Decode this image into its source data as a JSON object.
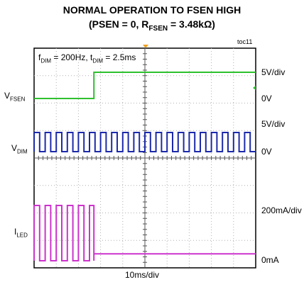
{
  "title_line1": "NORMAL OPERATION TO FSEN HIGH",
  "title_line2_pre": "(PSEN = 0, R",
  "title_line2_sub": "FSEN",
  "title_line2_post": " = 3.48kΩ)",
  "figure_id": "toc11",
  "annotation": {
    "f_pre": "f",
    "f_sub": "DIM",
    "f_post": " = 200Hz, t",
    "t_sub": "DIM",
    "t_post": " = 2.5ms"
  },
  "left_labels": {
    "vfsen_main": "V",
    "vfsen_sub": "FSEN",
    "vdim_main": "V",
    "vdim_sub": "DIM",
    "iled_main": "I",
    "iled_sub": "LED"
  },
  "right_labels": {
    "vfsen_scale": "5V/div",
    "vfsen_zero": "0V",
    "vdim_scale": "5V/div",
    "vdim_zero": "0V",
    "iled_scale": "200mA/div",
    "iled_zero": "0mA"
  },
  "xlabel": "10ms/div",
  "chart_data": {
    "type": "line",
    "x_unit": "ms",
    "x_range": [
      0,
      100
    ],
    "x_divisions": 10,
    "y_divisions": 8,
    "x_per_div": "10ms",
    "grid": true,
    "series": [
      {
        "name": "V_FSEN",
        "color": "#2ec02e",
        "scale": "5V/div",
        "x": [
          0,
          27,
          27,
          100
        ],
        "y": [
          0,
          0,
          5,
          5
        ],
        "y_unit": "V"
      },
      {
        "name": "V_DIM",
        "color": "#1c2aa8",
        "scale": "5V/div",
        "waveform": "square",
        "frequency_hz": 200,
        "high_v": 5,
        "low_v": 0,
        "high_ms": 2.5,
        "period_ms": 5,
        "x_range": [
          0,
          100
        ]
      },
      {
        "name": "I_LED",
        "color": "#cc33cc",
        "scale": "200mA/div",
        "waveform": "square_then_dc",
        "high_ma": 320,
        "low_ma": 0,
        "high_ms": 2.5,
        "period_ms": 5,
        "pwm_until_ms": 27,
        "dc_after_ma": 40,
        "x_range": [
          0,
          100
        ]
      }
    ]
  }
}
